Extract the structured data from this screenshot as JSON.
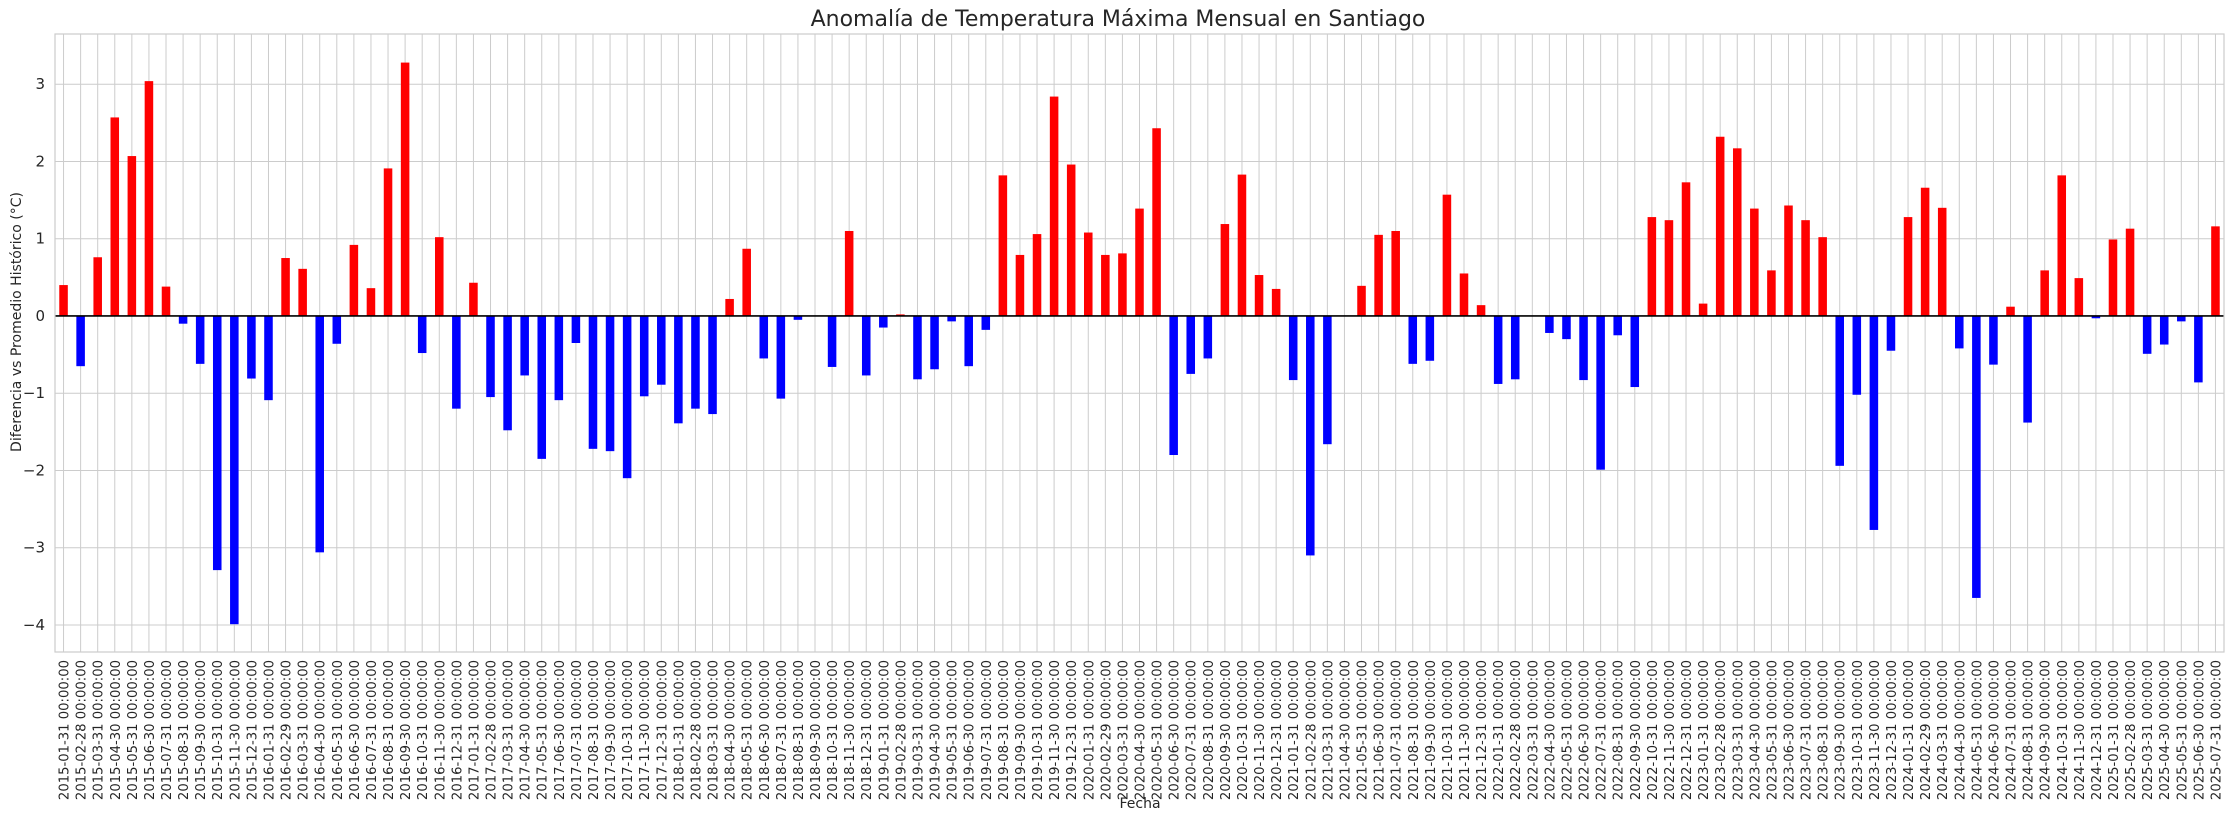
{
  "chart_data": {
    "type": "bar",
    "title": "Anomalía de Temperatura Máxima Mensual en Santiago",
    "xlabel": "Fecha",
    "ylabel": "Diferencia vs Promedio Histórico (°C)",
    "ylim": [
      -4.35,
      3.65
    ],
    "yticks": [
      -4,
      -3,
      -2,
      -1,
      0,
      1,
      2,
      3
    ],
    "grid": true,
    "legend": "none",
    "colors": {
      "positive": "#ff0000",
      "negative": "#0000ff",
      "grid": "#cccccc",
      "zero_line": "#000000"
    },
    "categories": [
      "2015-01-31 00:00:00",
      "2015-02-28 00:00:00",
      "2015-03-31 00:00:00",
      "2015-04-30 00:00:00",
      "2015-05-31 00:00:00",
      "2015-06-30 00:00:00",
      "2015-07-31 00:00:00",
      "2015-08-31 00:00:00",
      "2015-09-30 00:00:00",
      "2015-10-31 00:00:00",
      "2015-11-30 00:00:00",
      "2015-12-31 00:00:00",
      "2016-01-31 00:00:00",
      "2016-02-29 00:00:00",
      "2016-03-31 00:00:00",
      "2016-04-30 00:00:00",
      "2016-05-31 00:00:00",
      "2016-06-30 00:00:00",
      "2016-07-31 00:00:00",
      "2016-08-31 00:00:00",
      "2016-09-30 00:00:00",
      "2016-10-31 00:00:00",
      "2016-11-30 00:00:00",
      "2016-12-31 00:00:00",
      "2017-01-31 00:00:00",
      "2017-02-28 00:00:00",
      "2017-03-31 00:00:00",
      "2017-04-30 00:00:00",
      "2017-05-31 00:00:00",
      "2017-06-30 00:00:00",
      "2017-07-31 00:00:00",
      "2017-08-31 00:00:00",
      "2017-09-30 00:00:00",
      "2017-10-31 00:00:00",
      "2017-11-30 00:00:00",
      "2017-12-31 00:00:00",
      "2018-01-31 00:00:00",
      "2018-02-28 00:00:00",
      "2018-03-31 00:00:00",
      "2018-04-30 00:00:00",
      "2018-05-31 00:00:00",
      "2018-06-30 00:00:00",
      "2018-07-31 00:00:00",
      "2018-08-31 00:00:00",
      "2018-09-30 00:00:00",
      "2018-10-31 00:00:00",
      "2018-11-30 00:00:00",
      "2018-12-31 00:00:00",
      "2019-01-31 00:00:00",
      "2019-02-28 00:00:00",
      "2019-03-31 00:00:00",
      "2019-04-30 00:00:00",
      "2019-05-31 00:00:00",
      "2019-06-30 00:00:00",
      "2019-07-31 00:00:00",
      "2019-08-31 00:00:00",
      "2019-09-30 00:00:00",
      "2019-10-31 00:00:00",
      "2019-11-30 00:00:00",
      "2019-12-31 00:00:00",
      "2020-01-31 00:00:00",
      "2020-02-29 00:00:00",
      "2020-03-31 00:00:00",
      "2020-04-30 00:00:00",
      "2020-05-31 00:00:00",
      "2020-06-30 00:00:00",
      "2020-07-31 00:00:00",
      "2020-08-31 00:00:00",
      "2020-09-30 00:00:00",
      "2020-10-31 00:00:00",
      "2020-11-30 00:00:00",
      "2020-12-31 00:00:00",
      "2021-01-31 00:00:00",
      "2021-02-28 00:00:00",
      "2021-03-31 00:00:00",
      "2021-04-30 00:00:00",
      "2021-05-31 00:00:00",
      "2021-06-30 00:00:00",
      "2021-07-31 00:00:00",
      "2021-08-31 00:00:00",
      "2021-09-30 00:00:00",
      "2021-10-31 00:00:00",
      "2021-11-30 00:00:00",
      "2021-12-31 00:00:00",
      "2022-01-31 00:00:00",
      "2022-02-28 00:00:00",
      "2022-03-31 00:00:00",
      "2022-04-30 00:00:00",
      "2022-05-31 00:00:00",
      "2022-06-30 00:00:00",
      "2022-07-31 00:00:00",
      "2022-08-31 00:00:00",
      "2022-09-30 00:00:00",
      "2022-10-31 00:00:00",
      "2022-11-30 00:00:00",
      "2022-12-31 00:00:00",
      "2023-01-31 00:00:00",
      "2023-02-28 00:00:00",
      "2023-03-31 00:00:00",
      "2023-04-30 00:00:00",
      "2023-05-31 00:00:00",
      "2023-06-30 00:00:00",
      "2023-07-31 00:00:00",
      "2023-08-31 00:00:00",
      "2023-09-30 00:00:00",
      "2023-10-31 00:00:00",
      "2023-11-30 00:00:00",
      "2023-12-31 00:00:00",
      "2024-01-31 00:00:00",
      "2024-02-29 00:00:00",
      "2024-03-31 00:00:00",
      "2024-04-30 00:00:00",
      "2024-05-31 00:00:00",
      "2024-06-30 00:00:00",
      "2024-07-31 00:00:00",
      "2024-08-31 00:00:00",
      "2024-09-30 00:00:00",
      "2024-10-31 00:00:00",
      "2024-11-30 00:00:00",
      "2024-12-31 00:00:00",
      "2025-01-31 00:00:00",
      "2025-02-28 00:00:00",
      "2025-03-31 00:00:00",
      "2025-04-30 00:00:00",
      "2025-05-31 00:00:00",
      "2025-06-30 00:00:00",
      "2025-07-31 00:00:00"
    ],
    "values": [
      0.4,
      -0.65,
      0.76,
      2.57,
      2.07,
      3.04,
      0.38,
      -0.1,
      -0.62,
      -3.29,
      -3.99,
      -0.81,
      -1.09,
      0.75,
      0.61,
      -3.06,
      -0.36,
      0.92,
      0.36,
      1.91,
      3.28,
      -0.48,
      1.02,
      -1.2,
      0.43,
      -1.05,
      -1.48,
      -0.77,
      -1.85,
      -1.09,
      -0.35,
      -1.72,
      -1.75,
      -2.1,
      -1.04,
      -0.89,
      -1.39,
      -1.2,
      -1.27,
      0.22,
      0.87,
      -0.55,
      -1.07,
      -0.05,
      0.0,
      -0.66,
      1.1,
      -0.77,
      -0.15,
      0.02,
      -0.82,
      -0.69,
      -0.07,
      -0.65,
      -0.18,
      1.82,
      0.79,
      1.06,
      2.84,
      1.96,
      1.08,
      0.79,
      0.81,
      1.39,
      2.43,
      -1.8,
      -0.75,
      -0.55,
      1.19,
      1.83,
      0.53,
      0.35,
      -0.83,
      -3.1,
      -1.66,
      0.0,
      0.39,
      1.05,
      1.1,
      -0.62,
      -0.58,
      1.57,
      0.55,
      0.14,
      -0.88,
      -0.82,
      0.0,
      -0.22,
      -0.3,
      -0.83,
      -1.99,
      -0.25,
      -0.92,
      1.28,
      1.24,
      1.73,
      0.16,
      2.32,
      2.17,
      1.39,
      0.59,
      1.43,
      1.24,
      1.02,
      -1.94,
      -1.02,
      -2.77,
      -0.45,
      1.28,
      1.66,
      1.4,
      -0.42,
      -3.65,
      -0.63,
      0.12,
      -1.38,
      0.59,
      1.82,
      0.49,
      -0.03,
      0.99,
      1.13,
      -0.49,
      -0.37,
      -0.07,
      -0.86,
      1.16
    ]
  }
}
